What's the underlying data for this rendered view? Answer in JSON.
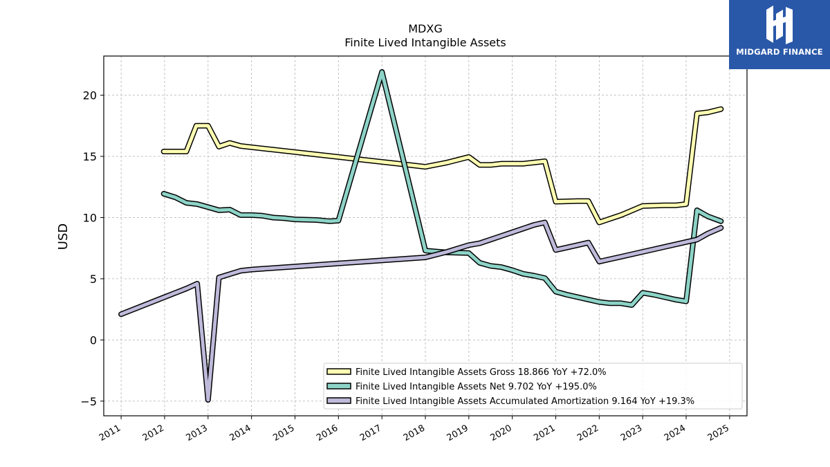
{
  "chart_data": {
    "type": "line",
    "title": "MDXG",
    "subtitle": "Finite Lived Intangible Assets",
    "xlabel": "",
    "ylabel": "USD",
    "xlim": [
      2010.6,
      2025.4
    ],
    "ylim": [
      -6.2,
      23.2
    ],
    "x_ticks": [
      "2011",
      "2012",
      "2013",
      "2014",
      "2015",
      "2016",
      "2017",
      "2018",
      "2019",
      "2020",
      "2021",
      "2022",
      "2023",
      "2024",
      "2025"
    ],
    "y_ticks": [
      -5,
      0,
      5,
      10,
      15,
      20
    ],
    "y_tick_labels": [
      "−5",
      "0",
      "5",
      "10",
      "15",
      "20"
    ],
    "grid": true,
    "legend_position": "lower-right",
    "series": [
      {
        "name": "Finite Lived Intangible Assets Gross",
        "legend_label": "Finite Lived Intangible Assets Gross  18.866 YoY +72.0%",
        "color": "#ffffb3",
        "points": [
          [
            2011.98,
            15.4
          ],
          [
            2012.5,
            15.4
          ],
          [
            2012.73,
            17.5
          ],
          [
            2013.0,
            17.5
          ],
          [
            2013.25,
            15.8
          ],
          [
            2013.5,
            16.1
          ],
          [
            2013.75,
            15.85
          ],
          [
            2014.0,
            15.75
          ],
          [
            2014.5,
            15.55
          ],
          [
            2015.0,
            15.35
          ],
          [
            2015.5,
            15.15
          ],
          [
            2016.0,
            14.95
          ],
          [
            2016.5,
            14.75
          ],
          [
            2017.0,
            14.55
          ],
          [
            2017.5,
            14.35
          ],
          [
            2018.0,
            14.15
          ],
          [
            2018.5,
            14.5
          ],
          [
            2019.0,
            14.95
          ],
          [
            2019.25,
            14.3
          ],
          [
            2019.5,
            14.3
          ],
          [
            2019.75,
            14.4
          ],
          [
            2020.0,
            14.4
          ],
          [
            2020.25,
            14.4
          ],
          [
            2020.5,
            14.5
          ],
          [
            2020.75,
            14.6
          ],
          [
            2021.0,
            11.3
          ],
          [
            2021.5,
            11.35
          ],
          [
            2021.75,
            11.35
          ],
          [
            2022.0,
            9.6
          ],
          [
            2022.5,
            10.2
          ],
          [
            2023.0,
            10.95
          ],
          [
            2023.5,
            11.0
          ],
          [
            2023.75,
            11.0
          ],
          [
            2024.0,
            11.1
          ],
          [
            2024.25,
            18.5
          ],
          [
            2024.5,
            18.6
          ],
          [
            2024.8,
            18.866
          ]
        ]
      },
      {
        "name": "Finite Lived Intangible Assets Net",
        "legend_label": "Finite Lived Intangible Assets Net  9.702 YoY +195.0%",
        "color": "#8dd3c7",
        "points": [
          [
            2011.98,
            11.95
          ],
          [
            2012.25,
            11.65
          ],
          [
            2012.5,
            11.2
          ],
          [
            2012.75,
            11.1
          ],
          [
            2013.0,
            10.85
          ],
          [
            2013.25,
            10.6
          ],
          [
            2013.5,
            10.65
          ],
          [
            2013.75,
            10.2
          ],
          [
            2014.0,
            10.2
          ],
          [
            2014.25,
            10.15
          ],
          [
            2014.5,
            10.0
          ],
          [
            2014.75,
            9.95
          ],
          [
            2015.0,
            9.85
          ],
          [
            2015.5,
            9.8
          ],
          [
            2015.8,
            9.7
          ],
          [
            2016.0,
            9.75
          ],
          [
            2017.0,
            21.9
          ],
          [
            2018.0,
            7.3
          ],
          [
            2018.5,
            7.15
          ],
          [
            2019.0,
            7.1
          ],
          [
            2019.25,
            6.3
          ],
          [
            2019.5,
            6.05
          ],
          [
            2019.75,
            5.95
          ],
          [
            2020.0,
            5.7
          ],
          [
            2020.25,
            5.4
          ],
          [
            2020.5,
            5.25
          ],
          [
            2020.75,
            5.05
          ],
          [
            2021.0,
            3.95
          ],
          [
            2021.25,
            3.7
          ],
          [
            2021.5,
            3.5
          ],
          [
            2021.75,
            3.3
          ],
          [
            2022.0,
            3.1
          ],
          [
            2022.25,
            3.0
          ],
          [
            2022.5,
            3.0
          ],
          [
            2022.75,
            2.85
          ],
          [
            2023.0,
            3.85
          ],
          [
            2023.25,
            3.7
          ],
          [
            2023.5,
            3.5
          ],
          [
            2023.75,
            3.3
          ],
          [
            2024.0,
            3.15
          ],
          [
            2024.25,
            10.6
          ],
          [
            2024.5,
            10.1
          ],
          [
            2024.8,
            9.702
          ]
        ]
      },
      {
        "name": "Finite Lived Intangible Assets Accumulated Amortization",
        "legend_label": "Finite Lived Intangible Assets Accumulated Amortization  9.164 YoY +19.3%",
        "color": "#bebada",
        "points": [
          [
            2011.0,
            2.1
          ],
          [
            2012.0,
            3.5
          ],
          [
            2012.5,
            4.2
          ],
          [
            2012.75,
            4.6
          ],
          [
            2013.0,
            -4.9
          ],
          [
            2013.25,
            5.1
          ],
          [
            2013.75,
            5.65
          ],
          [
            2014.0,
            5.75
          ],
          [
            2015.0,
            6.0
          ],
          [
            2016.0,
            6.25
          ],
          [
            2017.0,
            6.5
          ],
          [
            2018.0,
            6.75
          ],
          [
            2018.5,
            7.2
          ],
          [
            2019.0,
            7.75
          ],
          [
            2019.25,
            7.9
          ],
          [
            2019.5,
            8.2
          ],
          [
            2019.75,
            8.5
          ],
          [
            2020.0,
            8.8
          ],
          [
            2020.25,
            9.1
          ],
          [
            2020.5,
            9.4
          ],
          [
            2020.75,
            9.6
          ],
          [
            2021.0,
            7.35
          ],
          [
            2021.25,
            7.55
          ],
          [
            2021.5,
            7.75
          ],
          [
            2021.75,
            7.95
          ],
          [
            2022.0,
            6.4
          ],
          [
            2022.5,
            6.8
          ],
          [
            2023.0,
            7.2
          ],
          [
            2023.5,
            7.6
          ],
          [
            2024.0,
            8.0
          ],
          [
            2024.25,
            8.2
          ],
          [
            2024.5,
            8.7
          ],
          [
            2024.8,
            9.164
          ]
        ]
      }
    ]
  },
  "branding": {
    "name": "MIDGARD FINANCE",
    "background": "#2a58a8"
  }
}
